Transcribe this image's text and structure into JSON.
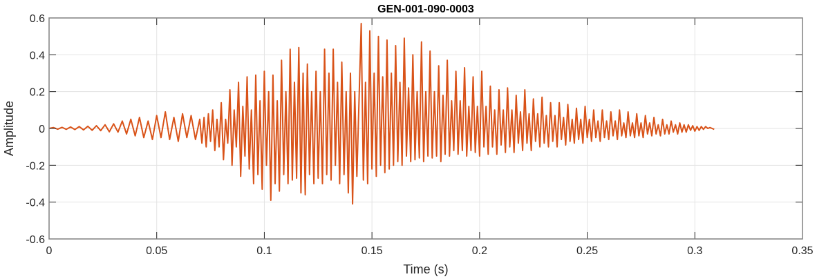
{
  "chart_data": {
    "type": "line",
    "title": "GEN-001-090-0003",
    "xlabel": "Time (s)",
    "ylabel": "Amplitude",
    "xlim": [
      0,
      0.35
    ],
    "ylim": [
      -0.6,
      0.6
    ],
    "xticks": [
      0,
      0.05,
      0.1,
      0.15,
      0.2,
      0.25,
      0.3,
      0.35
    ],
    "xtick_labels": [
      "0",
      "0.05",
      "0.1",
      "0.15",
      "0.2",
      "0.25",
      "0.3",
      "0.35"
    ],
    "yticks": [
      -0.6,
      -0.4,
      -0.2,
      0,
      0.2,
      0.4,
      0.6
    ],
    "ytick_labels": [
      "-0.6",
      "-0.4",
      "-0.2",
      "0",
      "0.2",
      "0.4",
      "0.6"
    ],
    "grid": true,
    "series_color": "#D95319",
    "points": [
      [
        0,
        0
      ],
      [
        0.002,
        0.005
      ],
      [
        0.004,
        -0.004
      ],
      [
        0.006,
        0.006
      ],
      [
        0.008,
        -0.005
      ],
      [
        0.01,
        0.008
      ],
      [
        0.012,
        -0.006
      ],
      [
        0.014,
        0.01
      ],
      [
        0.016,
        -0.008
      ],
      [
        0.018,
        0.012
      ],
      [
        0.02,
        -0.01
      ],
      [
        0.022,
        0.015
      ],
      [
        0.024,
        -0.012
      ],
      [
        0.026,
        0.02
      ],
      [
        0.028,
        -0.018
      ],
      [
        0.03,
        0.025
      ],
      [
        0.032,
        -0.02
      ],
      [
        0.034,
        0.04
      ],
      [
        0.036,
        -0.03
      ],
      [
        0.038,
        0.05
      ],
      [
        0.04,
        -0.04
      ],
      [
        0.042,
        0.06
      ],
      [
        0.044,
        -0.05
      ],
      [
        0.046,
        0.04
      ],
      [
        0.048,
        -0.06
      ],
      [
        0.05,
        0.07
      ],
      [
        0.052,
        -0.05
      ],
      [
        0.054,
        0.09
      ],
      [
        0.056,
        -0.06
      ],
      [
        0.058,
        0.06
      ],
      [
        0.06,
        -0.07
      ],
      [
        0.062,
        0.08
      ],
      [
        0.064,
        -0.05
      ],
      [
        0.066,
        0.07
      ],
      [
        0.068,
        -0.06
      ],
      [
        0.07,
        0.05
      ],
      [
        0.071,
        -0.08
      ],
      [
        0.072,
        0.06
      ],
      [
        0.073,
        -0.1
      ],
      [
        0.074,
        0.08
      ],
      [
        0.075,
        -0.07
      ],
      [
        0.076,
        0.1
      ],
      [
        0.077,
        -0.12
      ],
      [
        0.078,
        0.05
      ],
      [
        0.079,
        -0.1
      ],
      [
        0.08,
        0.14
      ],
      [
        0.081,
        -0.17
      ],
      [
        0.082,
        0.05
      ],
      [
        0.083,
        -0.08
      ],
      [
        0.084,
        0.21
      ],
      [
        0.085,
        -0.2
      ],
      [
        0.086,
        0.1
      ],
      [
        0.087,
        -0.1
      ],
      [
        0.088,
        0.25
      ],
      [
        0.089,
        -0.26
      ],
      [
        0.09,
        0.12
      ],
      [
        0.091,
        -0.15
      ],
      [
        0.092,
        0.28
      ],
      [
        0.093,
        -0.22
      ],
      [
        0.094,
        0.1
      ],
      [
        0.095,
        -0.3
      ],
      [
        0.096,
        0.29
      ],
      [
        0.097,
        -0.25
      ],
      [
        0.098,
        0.15
      ],
      [
        0.099,
        -0.33
      ],
      [
        0.1,
        0.31
      ],
      [
        0.101,
        -0.2
      ],
      [
        0.102,
        0.2
      ],
      [
        0.103,
        -0.39
      ],
      [
        0.104,
        0.29
      ],
      [
        0.105,
        -0.3
      ],
      [
        0.106,
        0.15
      ],
      [
        0.107,
        -0.34
      ],
      [
        0.108,
        0.37
      ],
      [
        0.109,
        -0.25
      ],
      [
        0.11,
        0.2
      ],
      [
        0.111,
        -0.3
      ],
      [
        0.112,
        0.43
      ],
      [
        0.113,
        -0.28
      ],
      [
        0.114,
        0.25
      ],
      [
        0.115,
        -0.27
      ],
      [
        0.116,
        0.44
      ],
      [
        0.117,
        -0.35
      ],
      [
        0.118,
        0.3
      ],
      [
        0.119,
        -0.36
      ],
      [
        0.12,
        0.35
      ],
      [
        0.121,
        -0.25
      ],
      [
        0.122,
        0.2
      ],
      [
        0.123,
        -0.3
      ],
      [
        0.124,
        0.31
      ],
      [
        0.125,
        -0.27
      ],
      [
        0.126,
        0.2
      ],
      [
        0.127,
        -0.3
      ],
      [
        0.128,
        0.43
      ],
      [
        0.129,
        -0.25
      ],
      [
        0.13,
        0.3
      ],
      [
        0.131,
        -0.28
      ],
      [
        0.132,
        0.43
      ],
      [
        0.133,
        -0.2
      ],
      [
        0.134,
        0.25
      ],
      [
        0.135,
        -0.3
      ],
      [
        0.136,
        0.36
      ],
      [
        0.137,
        -0.25
      ],
      [
        0.138,
        0.2
      ],
      [
        0.139,
        -0.35
      ],
      [
        0.14,
        0.3
      ],
      [
        0.141,
        -0.41
      ],
      [
        0.142,
        0.2
      ],
      [
        0.143,
        -0.26
      ],
      [
        0.145,
        0.57
      ],
      [
        0.146,
        -0.28
      ],
      [
        0.147,
        0.25
      ],
      [
        0.148,
        -0.3
      ],
      [
        0.149,
        0.53
      ],
      [
        0.15,
        -0.22
      ],
      [
        0.151,
        0.3
      ],
      [
        0.152,
        -0.26
      ],
      [
        0.153,
        0.5
      ],
      [
        0.154,
        -0.2
      ],
      [
        0.155,
        0.28
      ],
      [
        0.156,
        -0.24
      ],
      [
        0.157,
        0.48
      ],
      [
        0.158,
        -0.22
      ],
      [
        0.159,
        0.3
      ],
      [
        0.16,
        -0.2
      ],
      [
        0.161,
        0.45
      ],
      [
        0.162,
        -0.18
      ],
      [
        0.163,
        0.25
      ],
      [
        0.164,
        -0.2
      ],
      [
        0.165,
        0.49
      ],
      [
        0.166,
        -0.15
      ],
      [
        0.167,
        0.22
      ],
      [
        0.168,
        -0.18
      ],
      [
        0.169,
        0.4
      ],
      [
        0.17,
        -0.17
      ],
      [
        0.171,
        0.2
      ],
      [
        0.172,
        -0.16
      ],
      [
        0.173,
        0.47
      ],
      [
        0.174,
        -0.18
      ],
      [
        0.175,
        0.2
      ],
      [
        0.176,
        -0.15
      ],
      [
        0.177,
        0.42
      ],
      [
        0.178,
        -0.16
      ],
      [
        0.179,
        0.2
      ],
      [
        0.18,
        -0.15
      ],
      [
        0.181,
        0.34
      ],
      [
        0.182,
        -0.18
      ],
      [
        0.183,
        0.18
      ],
      [
        0.184,
        -0.14
      ],
      [
        0.185,
        0.37
      ],
      [
        0.186,
        -0.15
      ],
      [
        0.187,
        0.15
      ],
      [
        0.188,
        -0.12
      ],
      [
        0.189,
        0.31
      ],
      [
        0.19,
        -0.14
      ],
      [
        0.191,
        0.15
      ],
      [
        0.192,
        -0.12
      ],
      [
        0.193,
        0.33
      ],
      [
        0.194,
        -0.15
      ],
      [
        0.195,
        0.12
      ],
      [
        0.196,
        -0.12
      ],
      [
        0.197,
        0.28
      ],
      [
        0.198,
        -0.13
      ],
      [
        0.199,
        0.12
      ],
      [
        0.2,
        -0.15
      ],
      [
        0.201,
        0.31
      ],
      [
        0.202,
        -0.1
      ],
      [
        0.203,
        0.12
      ],
      [
        0.204,
        -0.14
      ],
      [
        0.205,
        0.23
      ],
      [
        0.206,
        -0.1
      ],
      [
        0.207,
        0.1
      ],
      [
        0.208,
        -0.14
      ],
      [
        0.209,
        0.21
      ],
      [
        0.21,
        -0.09
      ],
      [
        0.211,
        0.1
      ],
      [
        0.212,
        -0.13
      ],
      [
        0.213,
        0.22
      ],
      [
        0.214,
        -0.1
      ],
      [
        0.215,
        0.1
      ],
      [
        0.216,
        -0.13
      ],
      [
        0.217,
        0.18
      ],
      [
        0.218,
        -0.08
      ],
      [
        0.219,
        0.09
      ],
      [
        0.22,
        -0.12
      ],
      [
        0.221,
        0.21
      ],
      [
        0.222,
        -0.08
      ],
      [
        0.223,
        0.08
      ],
      [
        0.224,
        -0.12
      ],
      [
        0.225,
        0.16
      ],
      [
        0.226,
        -0.07
      ],
      [
        0.227,
        0.08
      ],
      [
        0.228,
        -0.1
      ],
      [
        0.229,
        0.17
      ],
      [
        0.23,
        -0.08
      ],
      [
        0.231,
        0.07
      ],
      [
        0.232,
        -0.1
      ],
      [
        0.233,
        0.14
      ],
      [
        0.234,
        -0.07
      ],
      [
        0.235,
        0.07
      ],
      [
        0.236,
        -0.1
      ],
      [
        0.237,
        0.14
      ],
      [
        0.238,
        -0.06
      ],
      [
        0.239,
        0.06
      ],
      [
        0.24,
        -0.09
      ],
      [
        0.241,
        0.13
      ],
      [
        0.242,
        -0.07
      ],
      [
        0.243,
        0.05
      ],
      [
        0.244,
        -0.08
      ],
      [
        0.245,
        0.11
      ],
      [
        0.246,
        -0.06
      ],
      [
        0.247,
        0.05
      ],
      [
        0.248,
        -0.08
      ],
      [
        0.249,
        0.12
      ],
      [
        0.25,
        -0.05
      ],
      [
        0.251,
        0.05
      ],
      [
        0.252,
        -0.07
      ],
      [
        0.253,
        0.1
      ],
      [
        0.254,
        -0.05
      ],
      [
        0.255,
        0.04
      ],
      [
        0.256,
        -0.07
      ],
      [
        0.257,
        0.1
      ],
      [
        0.258,
        -0.05
      ],
      [
        0.259,
        0.04
      ],
      [
        0.26,
        -0.06
      ],
      [
        0.261,
        0.09
      ],
      [
        0.262,
        -0.04
      ],
      [
        0.263,
        0.04
      ],
      [
        0.264,
        -0.06
      ],
      [
        0.265,
        0.1
      ],
      [
        0.266,
        -0.04
      ],
      [
        0.267,
        0.03
      ],
      [
        0.268,
        -0.05
      ],
      [
        0.269,
        0.09
      ],
      [
        0.27,
        -0.04
      ],
      [
        0.271,
        0.03
      ],
      [
        0.272,
        -0.05
      ],
      [
        0.273,
        0.08
      ],
      [
        0.274,
        -0.04
      ],
      [
        0.275,
        0.03
      ],
      [
        0.276,
        -0.05
      ],
      [
        0.277,
        0.07
      ],
      [
        0.278,
        -0.03
      ],
      [
        0.279,
        0.03
      ],
      [
        0.28,
        -0.04
      ],
      [
        0.281,
        0.06
      ],
      [
        0.282,
        -0.03
      ],
      [
        0.283,
        0.02
      ],
      [
        0.284,
        -0.04
      ],
      [
        0.285,
        0.05
      ],
      [
        0.286,
        -0.03
      ],
      [
        0.287,
        0.02
      ],
      [
        0.288,
        -0.03
      ],
      [
        0.289,
        0.04
      ],
      [
        0.29,
        -0.02
      ],
      [
        0.291,
        0.02
      ],
      [
        0.292,
        -0.03
      ],
      [
        0.293,
        0.03
      ],
      [
        0.294,
        -0.02
      ],
      [
        0.295,
        0.02
      ],
      [
        0.296,
        -0.02
      ],
      [
        0.297,
        0.02
      ],
      [
        0.298,
        -0.01
      ],
      [
        0.299,
        0.015
      ],
      [
        0.3,
        -0.015
      ],
      [
        0.301,
        0.01
      ],
      [
        0.302,
        -0.01
      ],
      [
        0.303,
        0.01
      ],
      [
        0.304,
        -0.005
      ],
      [
        0.305,
        0.01
      ],
      [
        0.306,
        0
      ],
      [
        0.307,
        0.005
      ],
      [
        0.308,
        0
      ],
      [
        0.309,
        -0.005
      ]
    ]
  }
}
